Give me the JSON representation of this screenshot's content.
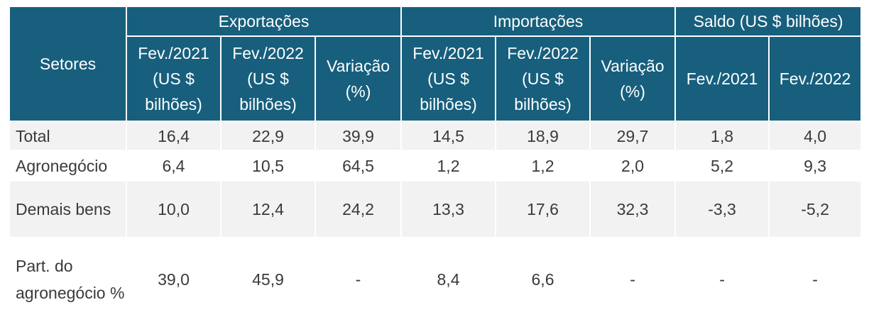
{
  "header": {
    "sectors": "Setores",
    "exports": "Exportações",
    "imports": "Importações",
    "balance": "Saldo (US $  bilhões)",
    "exp_cols": [
      "Fev./2021 (US $ bilhões)",
      "Fev./2022 (US $ bilhões)",
      "Variação (%)"
    ],
    "imp_cols": [
      "Fev./2021 (US $ bilhões)",
      "Fev./2022 (US $ bilhões)",
      "Variação (%)"
    ],
    "bal_cols": [
      "Fev./2021",
      "Fev./2022"
    ]
  },
  "rows": [
    {
      "label": "Total",
      "values": [
        "16,4",
        "22,9",
        "39,9",
        "14,5",
        "18,9",
        "29,7",
        "1,8",
        "4,0"
      ]
    },
    {
      "label": "Agronegócio",
      "values": [
        "6,4",
        "10,5",
        "64,5",
        "1,2",
        "1,2",
        "2,0",
        "5,2",
        "9,3"
      ]
    },
    {
      "label": "Demais bens",
      "values": [
        "10,0",
        "12,4",
        "24,2",
        "13,3",
        "17,6",
        "32,3",
        "-3,3",
        "-5,2"
      ]
    },
    {
      "label": "Part. do agronegócio %",
      "values": [
        "39,0",
        "45,9",
        "-",
        "8,4",
        "6,6",
        "-",
        "-",
        "-"
      ]
    }
  ]
}
